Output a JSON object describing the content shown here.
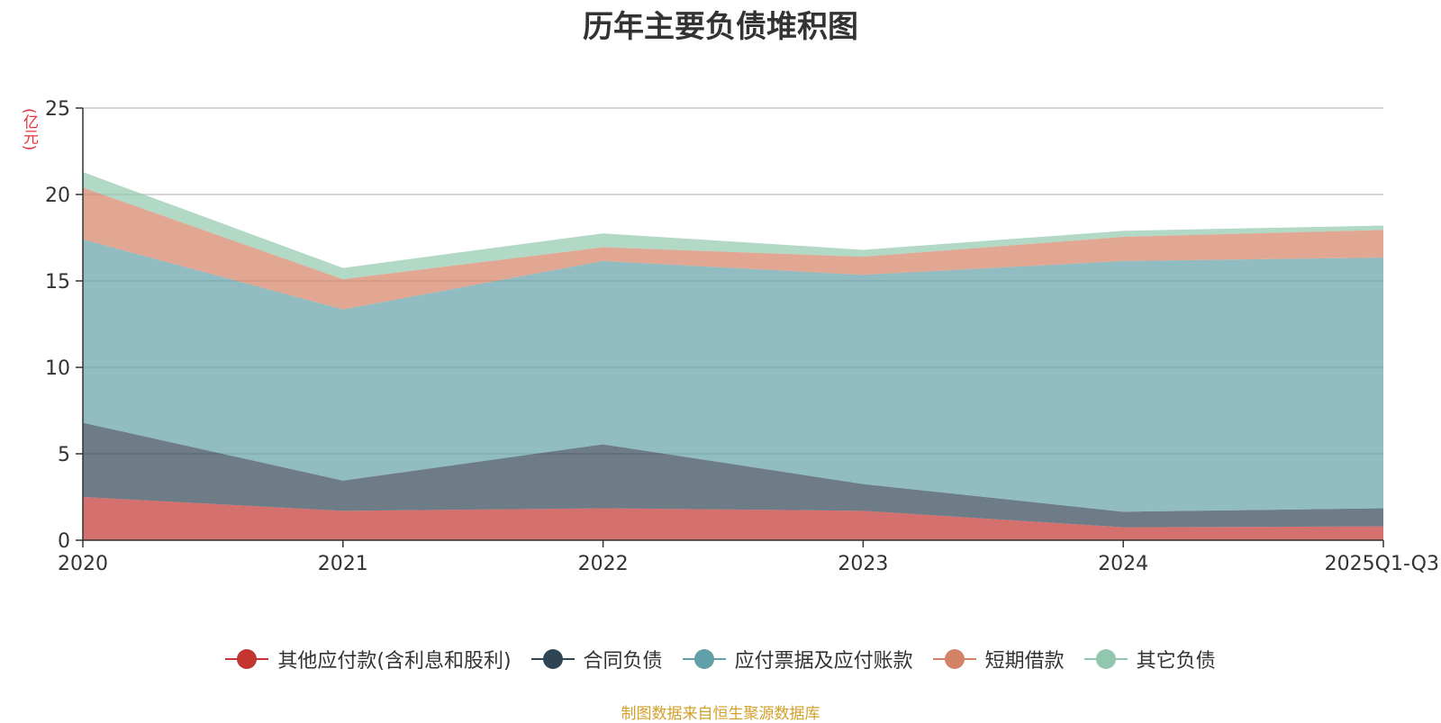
{
  "chart_data": {
    "type": "area",
    "stacked": true,
    "title": "历年主要负债堆积图",
    "unit_label": "(亿元)",
    "x": [
      "2020",
      "2021",
      "2022",
      "2023",
      "2024",
      "2025Q1-Q3"
    ],
    "ylim": [
      0,
      25
    ],
    "yticks": [
      "0",
      "5",
      "10",
      "15",
      "20",
      "25"
    ],
    "grid": true,
    "legend_position": "bottom",
    "series": [
      {
        "name": "其他应付款(含利息和股利)",
        "color": "#c23531",
        "values": [
          2.5,
          1.7,
          1.85,
          1.7,
          0.75,
          0.8
        ]
      },
      {
        "name": "合同负债",
        "color": "#2f4554",
        "values": [
          4.3,
          1.75,
          3.7,
          1.55,
          0.9,
          1.05
        ]
      },
      {
        "name": "应付票据及应付账款",
        "color": "#61a0a8",
        "values": [
          10.6,
          9.9,
          10.6,
          12.1,
          14.5,
          14.5
        ]
      },
      {
        "name": "短期借款",
        "color": "#d48265",
        "values": [
          3.0,
          1.75,
          0.8,
          1.05,
          1.4,
          1.6
        ]
      },
      {
        "name": "其它负债",
        "color": "#91c7ae",
        "values": [
          0.9,
          0.65,
          0.8,
          0.4,
          0.35,
          0.25
        ]
      }
    ],
    "source": "制图数据来自恒生聚源数据库"
  }
}
